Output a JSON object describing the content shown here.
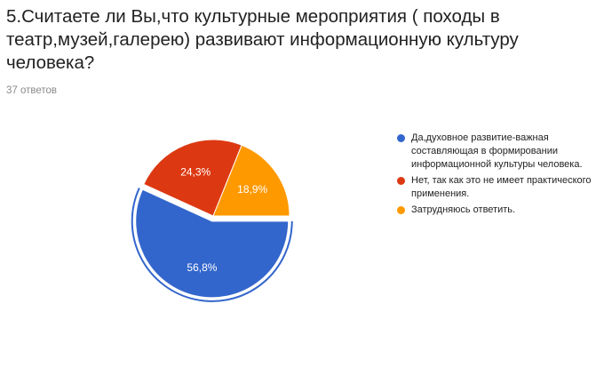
{
  "question": {
    "text": "5.Считаете ли Вы,что культурные мероприятия ( походы в театр,музей,галерею) развивают информационную культуру человека?"
  },
  "responses_count": "37 ответов",
  "chart_data": {
    "type": "pie",
    "title": "",
    "slices": [
      {
        "label": "Да,духовное развитие-важная составляющая в формировании информационной культуры человека.",
        "value": 56.8,
        "value_label": "56,8%",
        "color": "#3366cc",
        "exploded": true
      },
      {
        "label": "Нет, так как это не имеет практического применения.",
        "value": 24.3,
        "value_label": "24,3%",
        "color": "#dc3912",
        "exploded": false
      },
      {
        "label": "Затрудняюсь ответить.",
        "value": 18.9,
        "value_label": "18,9%",
        "color": "#ff9900",
        "exploded": false
      }
    ],
    "legend_placement": "right"
  }
}
